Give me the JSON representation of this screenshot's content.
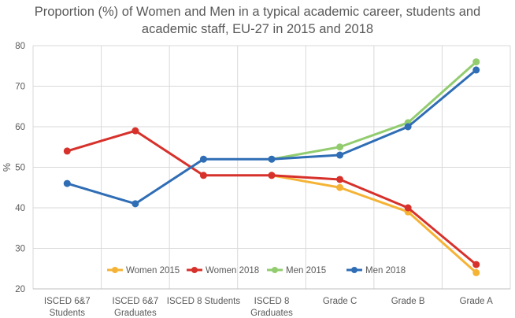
{
  "chart_data": {
    "type": "line",
    "title_lines": [
      "Proportion (%) of Women and Men in a typical academic career, students and",
      "academic staff, EU-27 in 2015 and 2018"
    ],
    "xlabel": "",
    "ylabel": "%",
    "ylim": [
      20,
      80
    ],
    "yticks": [
      20,
      30,
      40,
      50,
      60,
      70,
      80
    ],
    "grid": true,
    "legend_position": "bottom-center",
    "categories": [
      [
        "ISCED 6&7",
        "Students"
      ],
      [
        "ISCED 6&7",
        "Graduates"
      ],
      [
        "ISCED 8 Students"
      ],
      [
        "ISCED 8",
        "Graduates"
      ],
      [
        "Grade C"
      ],
      [
        "Grade B"
      ],
      [
        "Grade A"
      ]
    ],
    "series": [
      {
        "name": "Women 2015",
        "color": "#F5B335",
        "values": [
          null,
          null,
          null,
          48,
          45,
          39,
          24
        ]
      },
      {
        "name": "Women 2018",
        "color": "#D7312B",
        "values": [
          54,
          59,
          48,
          48,
          47,
          40,
          26
        ]
      },
      {
        "name": "Men 2015",
        "color": "#92CC6F",
        "values": [
          null,
          null,
          null,
          52,
          55,
          61,
          76
        ]
      },
      {
        "name": "Men 2018",
        "color": "#2F6DB5",
        "values": [
          46,
          41,
          52,
          52,
          53,
          60,
          74
        ]
      }
    ]
  }
}
